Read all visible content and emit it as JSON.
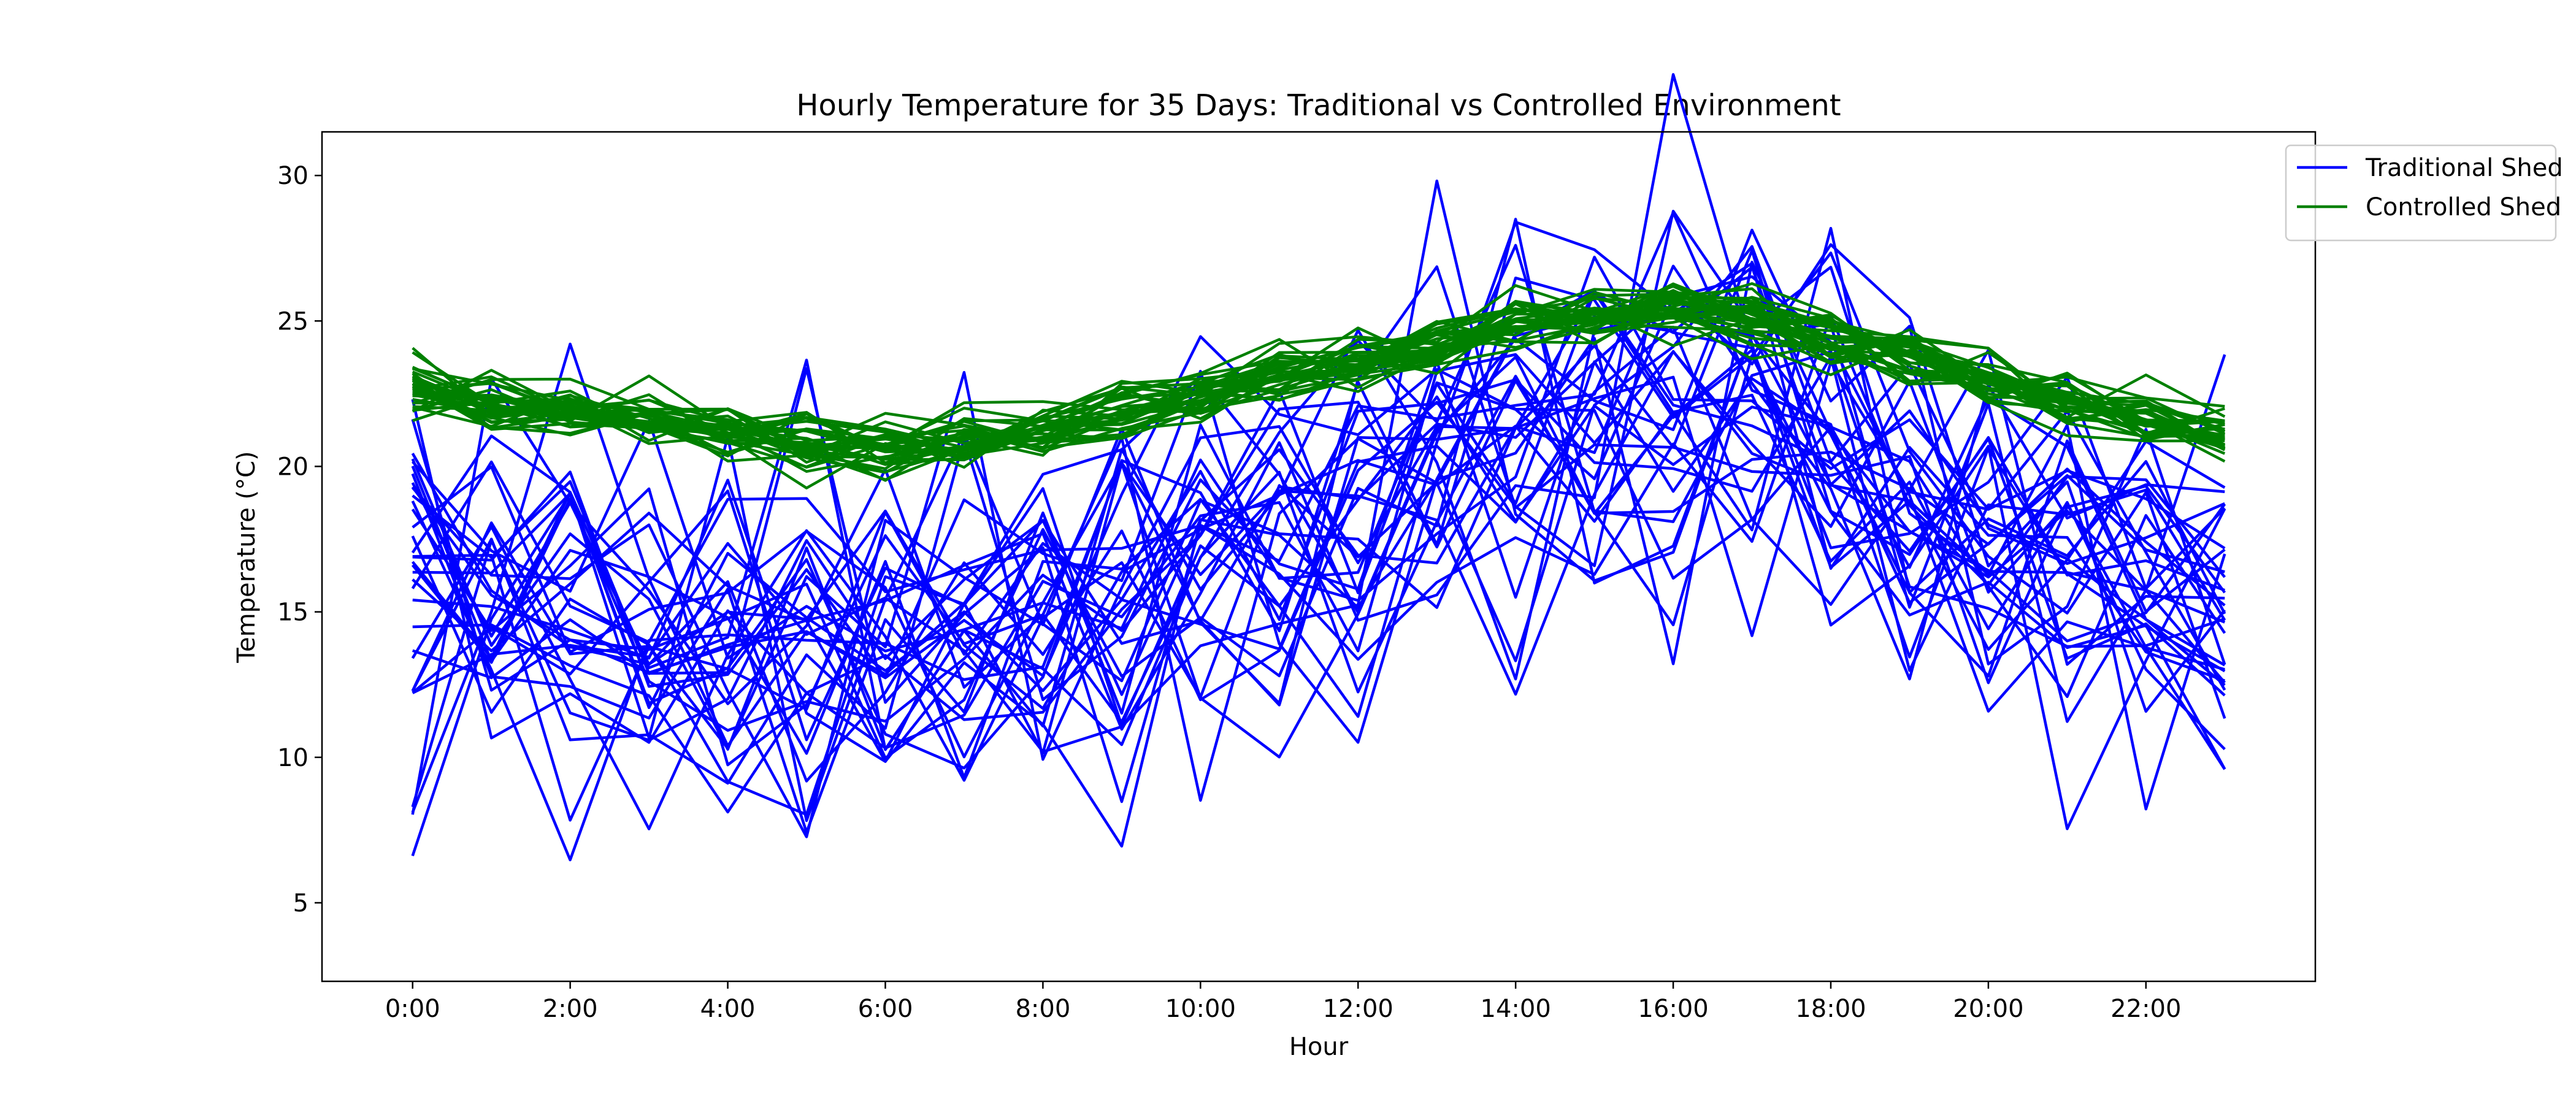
{
  "chart_data": {
    "type": "line",
    "title": "Hourly Temperature for 35 Days: Traditional vs Controlled Environment",
    "xlabel": "Hour",
    "ylabel": "Temperature (°C)",
    "x": [
      0,
      1,
      2,
      3,
      4,
      5,
      6,
      7,
      8,
      9,
      10,
      11,
      12,
      13,
      14,
      15,
      16,
      17,
      18,
      19,
      20,
      21,
      22,
      23
    ],
    "xticks": [
      "0:00",
      "2:00",
      "4:00",
      "6:00",
      "8:00",
      "10:00",
      "12:00",
      "14:00",
      "16:00",
      "18:00",
      "20:00",
      "22:00"
    ],
    "xtick_hours": [
      0,
      2,
      4,
      6,
      8,
      10,
      12,
      14,
      16,
      18,
      20,
      22
    ],
    "yticks": [
      5,
      10,
      15,
      20,
      25,
      30
    ],
    "xlim": [
      -1.15,
      24.15
    ],
    "ylim": [
      2.3,
      31.5
    ],
    "grid": false,
    "legend_position": "top-right",
    "series": [
      {
        "name": "Traditional Shed",
        "color": "#0000ff",
        "count": 35,
        "mean": [
          16.5,
          16.2,
          15.3,
          15.0,
          14.6,
          14.2,
          13.8,
          14.2,
          15.2,
          16.0,
          17.2,
          18.0,
          19.0,
          20.0,
          21.2,
          22.0,
          22.2,
          21.5,
          20.5,
          19.2,
          17.8,
          16.8,
          15.8,
          15.0
        ],
        "spread": 3.5
      },
      {
        "name": "Controlled Shed",
        "color": "#008000",
        "count": 35,
        "mean": [
          22.6,
          22.2,
          21.9,
          21.6,
          21.1,
          20.9,
          20.7,
          20.9,
          21.3,
          21.9,
          22.5,
          23.1,
          23.6,
          24.1,
          24.8,
          25.2,
          25.6,
          25.1,
          24.5,
          23.8,
          23.0,
          22.3,
          21.7,
          21.2
        ],
        "spread": 0.5
      }
    ]
  }
}
